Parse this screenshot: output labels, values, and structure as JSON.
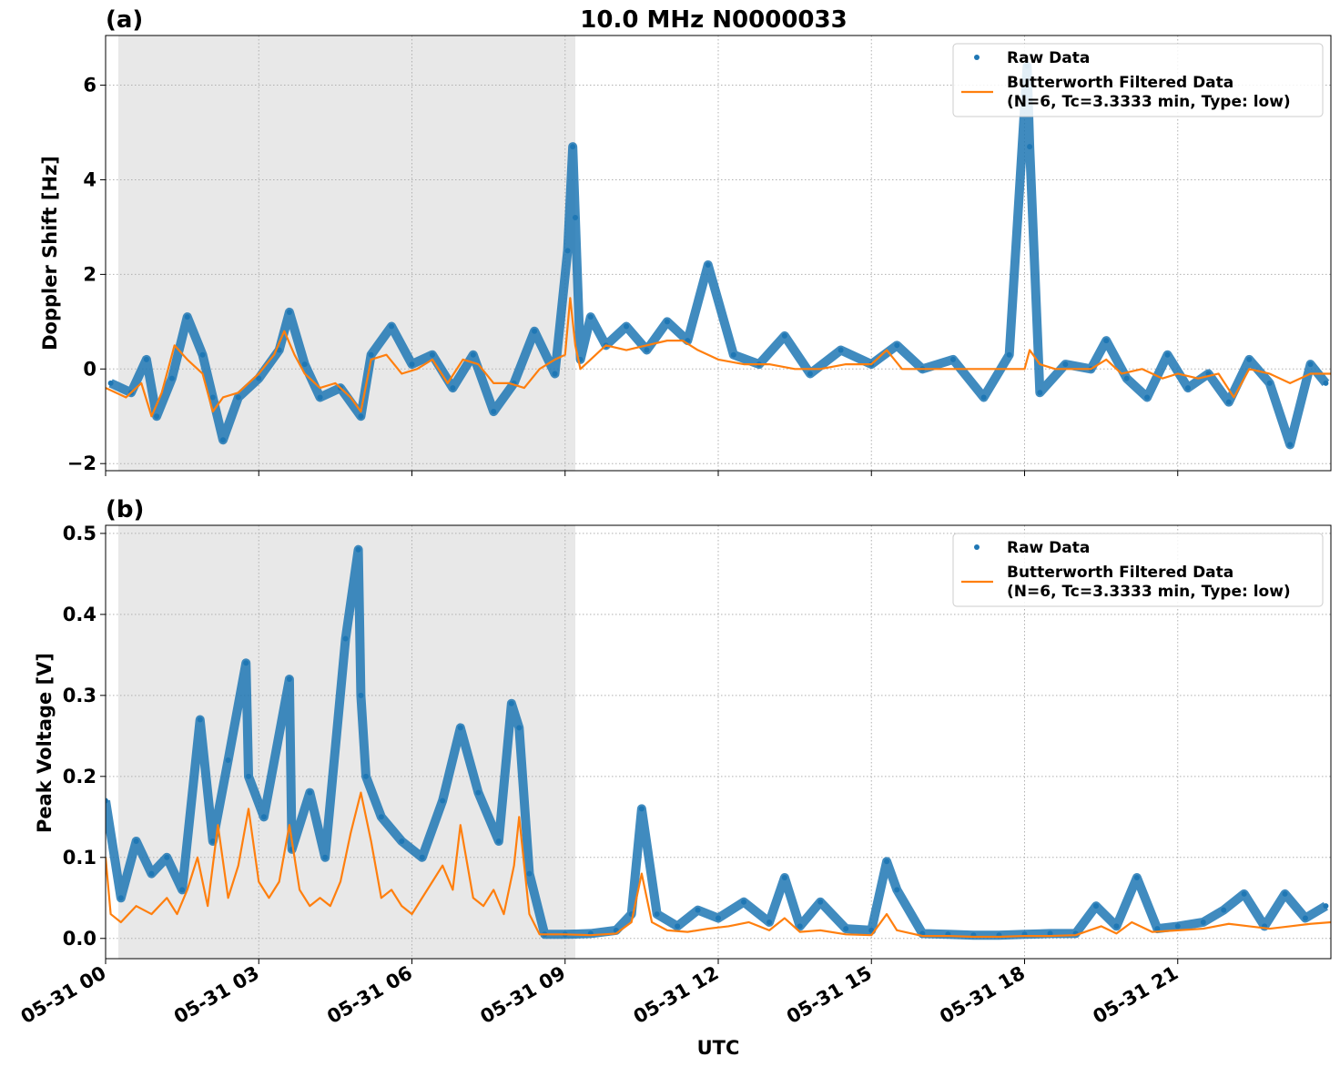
{
  "title": "10.0 MHz N0000033",
  "x_axis": {
    "label": "UTC",
    "ticks": [
      "05-31 00",
      "05-31 03",
      "05-31 06",
      "05-31 09",
      "05-31 12",
      "05-31 15",
      "05-31 18",
      "05-31 21"
    ]
  },
  "legend": {
    "raw_label": "Raw Data",
    "filtered_line1": "Butterworth Filtered Data",
    "filtered_line2": "(N=6, Tc=3.3333 min, Type: low)"
  },
  "colors": {
    "raw": "#1f77b4",
    "filtered": "#ff7f0e",
    "night_shade": "#e8e8e8",
    "grid": "#b0b0b0"
  },
  "chart_data": [
    {
      "type": "scatter",
      "panel_label": "(a)",
      "ylabel": "Doppler Shift [Hz]",
      "xlim_hours": [
        0,
        24
      ],
      "ylim": [
        -2.15,
        7.05
      ],
      "yticks": [
        -2,
        0,
        2,
        4,
        6
      ],
      "ytick_labels": [
        "−2",
        "0",
        "2",
        "4",
        "6"
      ],
      "shaded_x_hours": [
        0.25,
        9.2
      ],
      "grid": true,
      "legend_position": "upper right",
      "series": [
        {
          "name": "Raw Data",
          "kind": "points",
          "x_hours": [
            0.1,
            0.5,
            0.8,
            1.0,
            1.3,
            1.6,
            1.9,
            2.1,
            2.3,
            2.6,
            3.0,
            3.4,
            3.6,
            3.9,
            4.2,
            4.6,
            5.0,
            5.2,
            5.6,
            6.0,
            6.4,
            6.8,
            7.2,
            7.6,
            8.0,
            8.4,
            8.8,
            9.05,
            9.15,
            9.2,
            9.3,
            9.5,
            9.8,
            10.2,
            10.6,
            11.0,
            11.4,
            11.8,
            12.3,
            12.8,
            13.3,
            13.8,
            14.4,
            15.0,
            15.5,
            16.0,
            16.6,
            17.2,
            17.7,
            18.05,
            18.1,
            18.3,
            18.8,
            19.3,
            19.6,
            20.0,
            20.4,
            20.8,
            21.2,
            21.6,
            22.0,
            22.4,
            22.8,
            23.2,
            23.6,
            23.9
          ],
          "values": [
            -0.3,
            -0.5,
            0.2,
            -1.0,
            -0.2,
            1.1,
            0.3,
            -0.6,
            -1.5,
            -0.6,
            -0.2,
            0.4,
            1.2,
            0.1,
            -0.6,
            -0.4,
            -1.0,
            0.3,
            0.9,
            0.1,
            0.3,
            -0.4,
            0.3,
            -0.9,
            -0.3,
            0.8,
            -0.1,
            2.5,
            4.7,
            3.2,
            0.2,
            1.1,
            0.5,
            0.9,
            0.4,
            1.0,
            0.6,
            2.2,
            0.3,
            0.1,
            0.7,
            -0.1,
            0.4,
            0.1,
            0.5,
            0.0,
            0.2,
            -0.6,
            0.3,
            6.4,
            4.7,
            -0.5,
            0.1,
            0.0,
            0.6,
            -0.2,
            -0.6,
            0.3,
            -0.4,
            -0.1,
            -0.7,
            0.2,
            -0.3,
            -1.6,
            0.1,
            -0.3
          ]
        },
        {
          "name": "Butterworth Filtered Data",
          "kind": "line",
          "x_hours": [
            0.0,
            0.4,
            0.7,
            0.9,
            1.1,
            1.35,
            1.6,
            1.9,
            2.1,
            2.3,
            2.6,
            3.0,
            3.3,
            3.5,
            3.7,
            3.9,
            4.2,
            4.5,
            4.8,
            5.0,
            5.2,
            5.5,
            5.8,
            6.1,
            6.4,
            6.7,
            7.0,
            7.3,
            7.6,
            7.9,
            8.2,
            8.5,
            8.8,
            9.0,
            9.1,
            9.2,
            9.3,
            9.5,
            9.8,
            10.2,
            10.6,
            11.0,
            11.3,
            11.6,
            12.0,
            12.5,
            13.0,
            13.5,
            14.0,
            14.5,
            15.0,
            15.3,
            15.6,
            16.0,
            16.5,
            17.0,
            17.5,
            18.0,
            18.1,
            18.3,
            18.6,
            19.0,
            19.3,
            19.6,
            19.9,
            20.3,
            20.7,
            21.0,
            21.4,
            21.8,
            22.1,
            22.4,
            22.8,
            23.2,
            23.6,
            24.0
          ],
          "values": [
            -0.4,
            -0.6,
            -0.3,
            -1.0,
            -0.5,
            0.5,
            0.2,
            -0.1,
            -0.9,
            -0.6,
            -0.5,
            -0.1,
            0.3,
            0.8,
            0.3,
            -0.1,
            -0.4,
            -0.3,
            -0.6,
            -0.9,
            0.2,
            0.3,
            -0.1,
            0.0,
            0.2,
            -0.3,
            0.2,
            0.1,
            -0.3,
            -0.3,
            -0.4,
            0.0,
            0.2,
            0.3,
            1.5,
            0.5,
            0.0,
            0.2,
            0.5,
            0.4,
            0.5,
            0.6,
            0.6,
            0.4,
            0.2,
            0.1,
            0.1,
            0.0,
            0.0,
            0.1,
            0.1,
            0.4,
            0.0,
            0.0,
            0.0,
            0.0,
            0.0,
            0.0,
            0.4,
            0.1,
            0.0,
            0.0,
            0.0,
            0.2,
            -0.1,
            0.0,
            -0.2,
            -0.1,
            -0.2,
            -0.1,
            -0.6,
            0.0,
            -0.1,
            -0.3,
            -0.1,
            -0.1
          ]
        }
      ]
    },
    {
      "type": "scatter",
      "panel_label": "(b)",
      "ylabel": "Peak Voltage [V]",
      "xlim_hours": [
        0,
        24
      ],
      "ylim": [
        -0.025,
        0.51
      ],
      "yticks": [
        0.0,
        0.1,
        0.2,
        0.3,
        0.4,
        0.5
      ],
      "ytick_labels": [
        "0.0",
        "0.1",
        "0.2",
        "0.3",
        "0.4",
        "0.5"
      ],
      "shaded_x_hours": [
        0.25,
        9.2
      ],
      "grid": true,
      "legend_position": "upper right",
      "series": [
        {
          "name": "Raw Data",
          "kind": "points",
          "x_hours": [
            0.0,
            0.3,
            0.6,
            0.9,
            1.2,
            1.5,
            1.85,
            2.1,
            2.4,
            2.75,
            2.8,
            3.1,
            3.6,
            3.65,
            4.0,
            4.3,
            4.7,
            4.95,
            5.0,
            5.1,
            5.4,
            5.8,
            6.2,
            6.6,
            6.95,
            7.3,
            7.7,
            7.95,
            8.1,
            8.3,
            8.6,
            9.0,
            9.5,
            10.0,
            10.3,
            10.5,
            10.8,
            11.2,
            11.6,
            12.0,
            12.5,
            13.0,
            13.3,
            13.6,
            14.0,
            14.5,
            15.0,
            15.3,
            15.5,
            16.0,
            16.5,
            17.0,
            17.5,
            18.0,
            18.5,
            19.0,
            19.4,
            19.8,
            20.2,
            20.6,
            21.0,
            21.5,
            21.9,
            22.3,
            22.7,
            23.1,
            23.5,
            23.9
          ],
          "values": [
            0.17,
            0.05,
            0.12,
            0.08,
            0.1,
            0.06,
            0.27,
            0.12,
            0.22,
            0.34,
            0.2,
            0.15,
            0.32,
            0.11,
            0.18,
            0.1,
            0.37,
            0.48,
            0.3,
            0.2,
            0.15,
            0.12,
            0.1,
            0.17,
            0.26,
            0.18,
            0.12,
            0.29,
            0.26,
            0.08,
            0.005,
            0.005,
            0.006,
            0.01,
            0.03,
            0.16,
            0.03,
            0.015,
            0.035,
            0.025,
            0.045,
            0.02,
            0.075,
            0.015,
            0.045,
            0.012,
            0.01,
            0.095,
            0.06,
            0.006,
            0.005,
            0.004,
            0.004,
            0.005,
            0.006,
            0.006,
            0.04,
            0.015,
            0.075,
            0.012,
            0.015,
            0.02,
            0.035,
            0.055,
            0.015,
            0.055,
            0.025,
            0.04
          ]
        },
        {
          "name": "Butterworth Filtered Data",
          "kind": "line",
          "x_hours": [
            0.0,
            0.1,
            0.3,
            0.6,
            0.9,
            1.2,
            1.4,
            1.6,
            1.8,
            2.0,
            2.2,
            2.4,
            2.6,
            2.8,
            3.0,
            3.2,
            3.4,
            3.6,
            3.8,
            4.0,
            4.2,
            4.4,
            4.6,
            4.8,
            5.0,
            5.2,
            5.4,
            5.6,
            5.8,
            6.0,
            6.2,
            6.4,
            6.6,
            6.8,
            6.95,
            7.2,
            7.4,
            7.6,
            7.8,
            8.0,
            8.1,
            8.3,
            8.5,
            8.7,
            9.0,
            9.5,
            10.0,
            10.3,
            10.5,
            10.7,
            11.0,
            11.4,
            11.8,
            12.2,
            12.6,
            13.0,
            13.3,
            13.6,
            14.0,
            14.5,
            15.0,
            15.3,
            15.5,
            16.0,
            16.5,
            17.0,
            17.5,
            18.0,
            18.5,
            19.0,
            19.5,
            19.8,
            20.1,
            20.5,
            21.0,
            21.5,
            22.0,
            22.4,
            22.8,
            23.2,
            23.6,
            24.0
          ],
          "values": [
            0.1,
            0.03,
            0.02,
            0.04,
            0.03,
            0.05,
            0.03,
            0.06,
            0.1,
            0.04,
            0.14,
            0.05,
            0.09,
            0.16,
            0.07,
            0.05,
            0.07,
            0.14,
            0.06,
            0.04,
            0.05,
            0.04,
            0.07,
            0.13,
            0.18,
            0.12,
            0.05,
            0.06,
            0.04,
            0.03,
            0.05,
            0.07,
            0.09,
            0.06,
            0.14,
            0.05,
            0.04,
            0.06,
            0.03,
            0.09,
            0.15,
            0.03,
            0.005,
            0.005,
            0.005,
            0.004,
            0.006,
            0.02,
            0.08,
            0.02,
            0.01,
            0.008,
            0.012,
            0.015,
            0.02,
            0.01,
            0.025,
            0.008,
            0.01,
            0.005,
            0.004,
            0.03,
            0.01,
            0.003,
            0.003,
            0.002,
            0.002,
            0.003,
            0.003,
            0.004,
            0.015,
            0.006,
            0.02,
            0.008,
            0.01,
            0.012,
            0.018,
            0.015,
            0.012,
            0.015,
            0.018,
            0.02
          ]
        }
      ]
    }
  ]
}
